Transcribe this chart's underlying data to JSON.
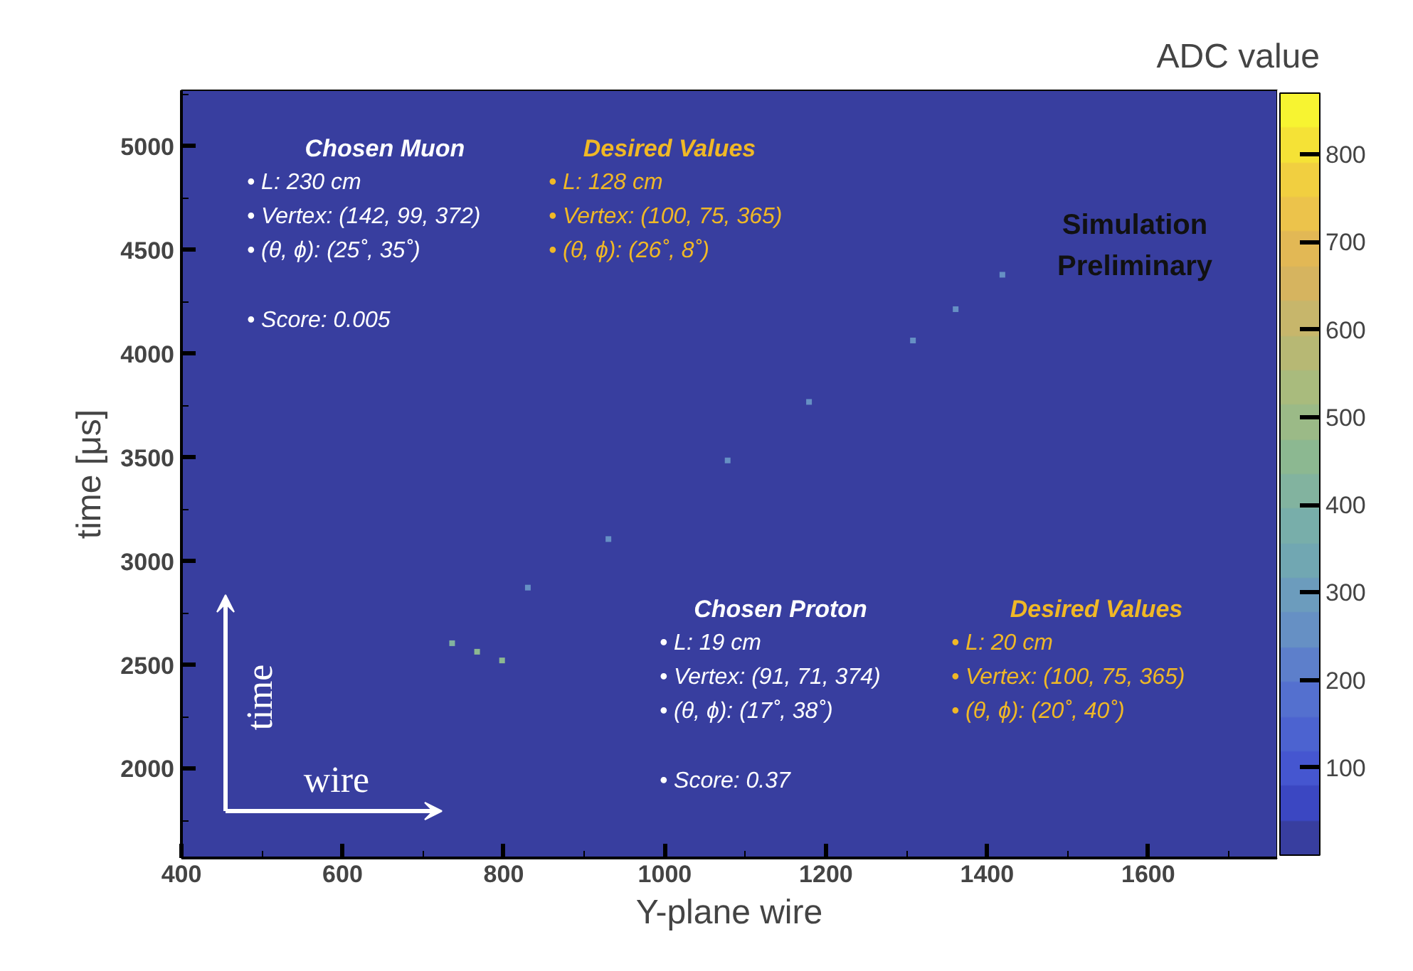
{
  "chart_data": {
    "type": "scatter",
    "xlabel": "Y-plane wire",
    "ylabel": "time [μs]",
    "clabel": "ADC value",
    "x": [
      736,
      830,
      930,
      1078,
      1179,
      1308,
      1361,
      1419,
      767,
      798
    ],
    "values": [
      2605,
      2873,
      3107,
      3486,
      3768,
      4064,
      4215,
      4381,
      2564,
      2522
    ],
    "cvalues": [
      400,
      250,
      250,
      250,
      250,
      250,
      250,
      250,
      450,
      450
    ],
    "marker": "square",
    "grid": false,
    "xlim": [
      400,
      1760
    ],
    "ylim": [
      1570,
      5270
    ],
    "xticks": [
      400,
      600,
      800,
      1000,
      1200,
      1400,
      1600
    ],
    "yticks": [
      2000,
      2500,
      3000,
      3500,
      4000,
      4500,
      5000
    ],
    "clim": [
      0,
      870
    ],
    "cticks": [
      100,
      200,
      300,
      400,
      500,
      600,
      700,
      800
    ],
    "annotations": [
      "Chosen Muon",
      "• L: 230 cm",
      "• Vertex: (142, 99, 372)",
      "• (θ, ϕ): (25˚, 35˚)",
      "• Score: 0.005",
      "Desired Values",
      "• L: 128 cm",
      "• Vertex: (100, 75, 365)",
      "• (θ, ϕ): (26˚, 8˚)",
      "Chosen Proton",
      "• L: 19 cm",
      "• Vertex: (91, 71, 374)",
      "• (θ, ϕ): (17˚, 38˚)",
      "• Score: 0.37",
      "Desired Values",
      "• L: 20 cm",
      "• Vertex: (100, 75, 365)",
      "• (θ, ϕ): (20˚, 40˚)",
      "Simulation",
      "Preliminary",
      "time",
      "wire"
    ]
  }
}
